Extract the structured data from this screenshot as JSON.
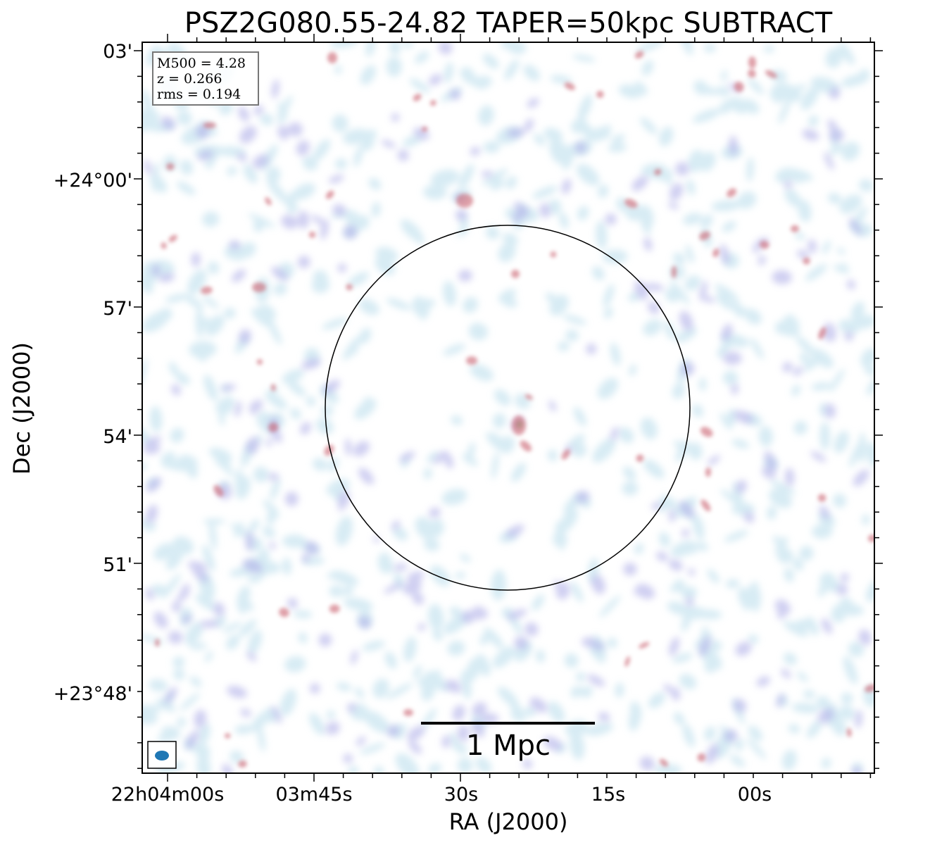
{
  "figure": {
    "title": "PSZ2G080.55-24.82 TAPER=50kpc SUBTRACT",
    "xlabel": "RA (J2000)",
    "ylabel": "Dec (J2000)",
    "ra_ticks": [
      "22h04m00s",
      "03m45s",
      "30s",
      "15s",
      "00s"
    ],
    "dec_ticks": [
      "03'",
      "+24°00'",
      "57'",
      "54'",
      "51'",
      "+23°48'"
    ],
    "info_box": {
      "lines": [
        "M500 = 4.28",
        "z = 0.266",
        "rms = 0.194"
      ]
    },
    "scale_bar": {
      "label": "1 Mpc"
    },
    "colors": {
      "frame": "#000000",
      "beam": "#1f77b4",
      "emission_low": "#b7dceb",
      "emission_mid": "#a9a8e6",
      "emission_high": "#c9606e",
      "emission_peak": "#9d5a3c"
    }
  }
}
